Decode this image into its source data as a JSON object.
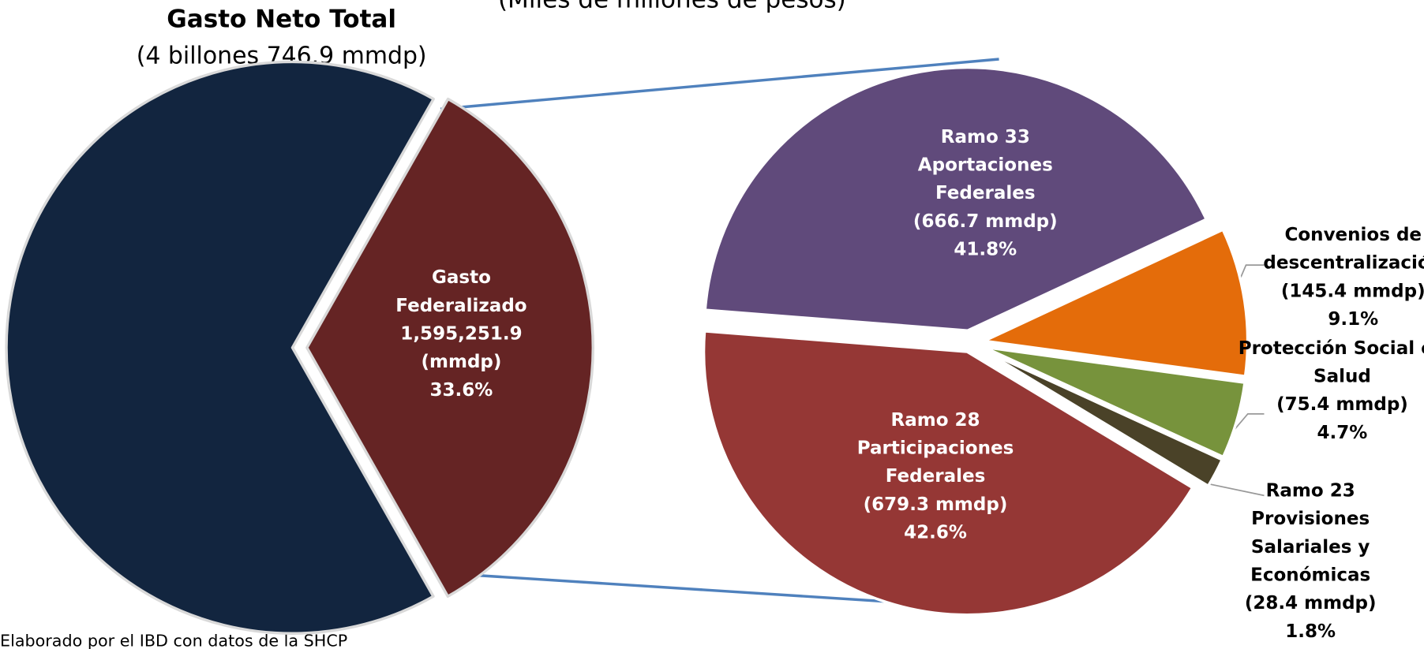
{
  "header": "(Miles de millones de pesos)",
  "source": "Elaborado por el IBD con datos de la SHCP",
  "chart_data": [
    {
      "type": "pie",
      "title": "Gasto Neto Total",
      "subtitle": "(4 billones 746.9 mmdp)",
      "categories": [
        null,
        "Gasto Federalizado"
      ],
      "amount_labels": [
        null,
        "1,595,251.9 (mmdp)"
      ],
      "values": [
        66.4,
        33.6
      ],
      "value_labels": [
        null,
        "33.6%"
      ],
      "colors": [
        "#12253f",
        "#652424"
      ]
    },
    {
      "type": "pie",
      "categories": [
        "Ramo 33 Aportaciones Federales",
        "Convenios de descentralización",
        "Protección Social en Salud",
        "Ramo 23 Provisiones Salariales y Económicas",
        "Ramo 28 Participaciones Federales"
      ],
      "amount_labels": [
        "(666.7 mmdp)",
        "(145.4 mmdp)",
        "(75.4 mmdp)",
        "(28.4 mmdp)",
        "(679.3 mmdp)"
      ],
      "values": [
        41.8,
        9.1,
        4.7,
        1.8,
        42.6
      ],
      "value_labels": [
        "41.8%",
        "9.1%",
        "4.7%",
        "1.8%",
        "42.6%"
      ],
      "colors": [
        "#604a7b",
        "#e46c0a",
        "#77933c",
        "#4a4228",
        "#953735"
      ]
    }
  ]
}
